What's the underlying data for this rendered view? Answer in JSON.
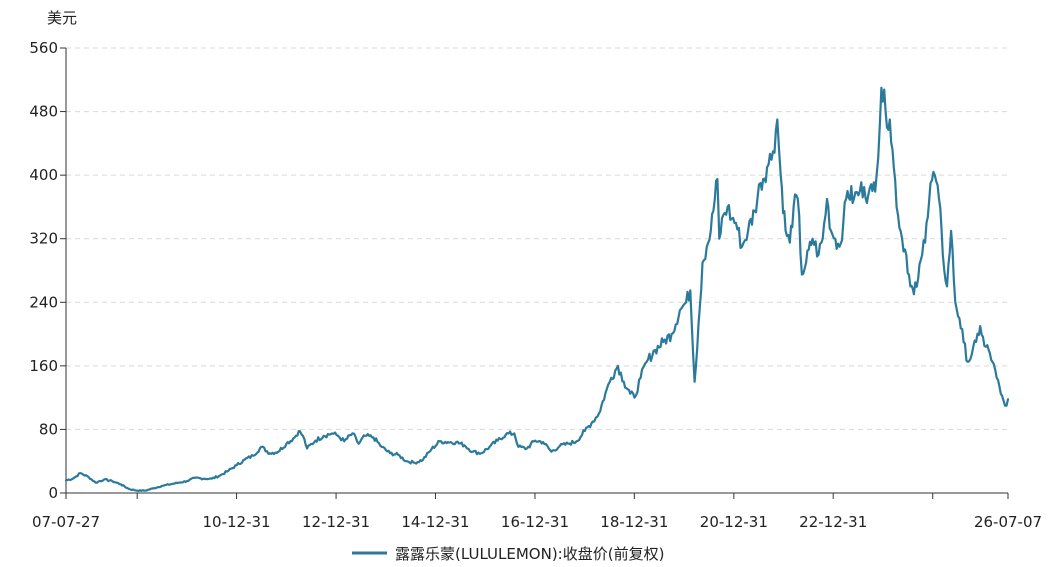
{
  "chart_data": {
    "type": "line",
    "title": "",
    "ylabel": "美元",
    "xlabel": "",
    "ylim": [
      0,
      560
    ],
    "yticks": [
      0,
      80,
      160,
      240,
      320,
      400,
      480,
      560
    ],
    "xlim": [
      "2007-07-27",
      "2026-07-07"
    ],
    "xticks": [
      {
        "date": "2007-07-27",
        "label": "07-07-27"
      },
      {
        "date": "2008-12-31",
        "label": ""
      },
      {
        "date": "2010-12-31",
        "label": "10-12-31"
      },
      {
        "date": "2012-12-31",
        "label": "12-12-31"
      },
      {
        "date": "2014-12-31",
        "label": "14-12-31"
      },
      {
        "date": "2016-12-31",
        "label": "16-12-31"
      },
      {
        "date": "2018-12-31",
        "label": "18-12-31"
      },
      {
        "date": "2020-12-31",
        "label": "20-12-31"
      },
      {
        "date": "2022-12-31",
        "label": "22-12-31"
      },
      {
        "date": "2024-12-31",
        "label": ""
      },
      {
        "date": "2026-07-07",
        "label": "26-07-07"
      }
    ],
    "grid": true,
    "legend_position": "bottom",
    "series": [
      {
        "name": "露露乐蒙(LULULEMON):收盘价(前复权)",
        "color": "#2c7a9b",
        "points": [
          [
            "2007-07-27",
            16
          ],
          [
            "2007-09-15",
            18
          ],
          [
            "2007-11-10",
            25
          ],
          [
            "2008-01-10",
            20
          ],
          [
            "2008-03-01",
            13
          ],
          [
            "2008-05-01",
            17
          ],
          [
            "2008-07-01",
            15
          ],
          [
            "2008-09-01",
            11
          ],
          [
            "2008-11-01",
            5
          ],
          [
            "2009-01-01",
            3
          ],
          [
            "2009-03-01",
            3
          ],
          [
            "2009-05-01",
            6
          ],
          [
            "2009-07-01",
            9
          ],
          [
            "2009-09-01",
            11
          ],
          [
            "2009-11-01",
            13
          ],
          [
            "2010-01-01",
            15
          ],
          [
            "2010-03-01",
            19
          ],
          [
            "2010-05-01",
            18
          ],
          [
            "2010-07-01",
            18
          ],
          [
            "2010-09-01",
            22
          ],
          [
            "2010-11-01",
            28
          ],
          [
            "2011-01-01",
            35
          ],
          [
            "2011-03-01",
            42
          ],
          [
            "2011-05-01",
            47
          ],
          [
            "2011-07-01",
            58
          ],
          [
            "2011-09-01",
            50
          ],
          [
            "2011-11-01",
            52
          ],
          [
            "2012-01-01",
            62
          ],
          [
            "2012-03-01",
            70
          ],
          [
            "2012-04-01",
            78
          ],
          [
            "2012-05-01",
            72
          ],
          [
            "2012-06-01",
            56
          ],
          [
            "2012-08-01",
            66
          ],
          [
            "2012-10-01",
            72
          ],
          [
            "2012-12-01",
            75
          ],
          [
            "2013-01-15",
            72
          ],
          [
            "2013-03-01",
            65
          ],
          [
            "2013-05-01",
            75
          ],
          [
            "2013-06-15",
            62
          ],
          [
            "2013-08-01",
            72
          ],
          [
            "2013-10-01",
            70
          ],
          [
            "2013-12-01",
            58
          ],
          [
            "2014-02-01",
            50
          ],
          [
            "2014-04-01",
            48
          ],
          [
            "2014-06-01",
            40
          ],
          [
            "2014-08-01",
            38
          ],
          [
            "2014-10-01",
            42
          ],
          [
            "2014-12-01",
            55
          ],
          [
            "2015-02-01",
            65
          ],
          [
            "2015-04-01",
            64
          ],
          [
            "2015-06-01",
            64
          ],
          [
            "2015-08-01",
            60
          ],
          [
            "2015-10-01",
            52
          ],
          [
            "2015-12-01",
            50
          ],
          [
            "2016-02-01",
            58
          ],
          [
            "2016-04-01",
            66
          ],
          [
            "2016-06-01",
            74
          ],
          [
            "2016-08-01",
            75
          ],
          [
            "2016-09-01",
            58
          ],
          [
            "2016-11-01",
            56
          ],
          [
            "2017-01-01",
            66
          ],
          [
            "2017-03-01",
            64
          ],
          [
            "2017-05-01",
            52
          ],
          [
            "2017-07-01",
            59
          ],
          [
            "2017-09-01",
            62
          ],
          [
            "2017-11-01",
            65
          ],
          [
            "2018-01-01",
            78
          ],
          [
            "2018-03-01",
            90
          ],
          [
            "2018-04-15",
            100
          ],
          [
            "2018-06-01",
            125
          ],
          [
            "2018-07-15",
            145
          ],
          [
            "2018-09-01",
            160
          ],
          [
            "2018-10-15",
            140
          ],
          [
            "2018-12-01",
            125
          ],
          [
            "2019-01-01",
            120
          ],
          [
            "2019-02-15",
            145
          ],
          [
            "2019-04-01",
            165
          ],
          [
            "2019-06-01",
            180
          ],
          [
            "2019-08-01",
            190
          ],
          [
            "2019-10-01",
            200
          ],
          [
            "2019-12-01",
            230
          ],
          [
            "2020-01-15",
            240
          ],
          [
            "2020-02-15",
            255
          ],
          [
            "2020-03-18",
            140
          ],
          [
            "2020-04-15",
            210
          ],
          [
            "2020-05-15",
            290
          ],
          [
            "2020-06-15",
            310
          ],
          [
            "2020-07-15",
            330
          ],
          [
            "2020-09-01",
            395
          ],
          [
            "2020-09-15",
            320
          ],
          [
            "2020-10-15",
            350
          ],
          [
            "2020-11-15",
            360
          ],
          [
            "2020-12-15",
            345
          ],
          [
            "2021-01-15",
            340
          ],
          [
            "2021-03-01",
            310
          ],
          [
            "2021-04-15",
            330
          ],
          [
            "2021-06-01",
            355
          ],
          [
            "2021-07-15",
            390
          ],
          [
            "2021-09-01",
            410
          ],
          [
            "2021-10-15",
            430
          ],
          [
            "2021-11-15",
            470
          ],
          [
            "2021-12-10",
            400
          ],
          [
            "2022-01-15",
            330
          ],
          [
            "2022-02-15",
            315
          ],
          [
            "2022-03-15",
            360
          ],
          [
            "2022-04-15",
            370
          ],
          [
            "2022-05-15",
            275
          ],
          [
            "2022-06-15",
            290
          ],
          [
            "2022-08-01",
            320
          ],
          [
            "2022-09-15",
            300
          ],
          [
            "2022-10-15",
            320
          ],
          [
            "2022-11-15",
            370
          ],
          [
            "2022-12-15",
            330
          ],
          [
            "2023-01-15",
            320
          ],
          [
            "2023-02-15",
            310
          ],
          [
            "2023-03-15",
            340
          ],
          [
            "2023-04-15",
            380
          ],
          [
            "2023-06-01",
            370
          ],
          [
            "2023-07-15",
            380
          ],
          [
            "2023-08-15",
            385
          ],
          [
            "2023-09-15",
            375
          ],
          [
            "2023-10-15",
            380
          ],
          [
            "2023-11-15",
            400
          ],
          [
            "2023-12-20",
            510
          ],
          [
            "2024-01-20",
            480
          ],
          [
            "2024-02-20",
            470
          ],
          [
            "2024-03-20",
            410
          ],
          [
            "2024-04-20",
            350
          ],
          [
            "2024-05-20",
            320
          ],
          [
            "2024-06-20",
            300
          ],
          [
            "2024-07-20",
            260
          ],
          [
            "2024-08-15",
            250
          ],
          [
            "2024-09-15",
            270
          ],
          [
            "2024-10-15",
            300
          ],
          [
            "2024-11-15",
            340
          ],
          [
            "2024-12-15",
            390
          ],
          [
            "2025-01-15",
            400
          ],
          [
            "2025-02-15",
            370
          ],
          [
            "2025-03-15",
            300
          ],
          [
            "2025-04-15",
            260
          ],
          [
            "2025-05-15",
            330
          ],
          [
            "2025-06-15",
            240
          ],
          [
            "2025-07-15",
            220
          ],
          [
            "2025-08-15",
            190
          ],
          [
            "2025-09-15",
            165
          ],
          [
            "2025-10-15",
            175
          ],
          [
            "2025-11-15",
            190
          ],
          [
            "2025-12-15",
            210
          ],
          [
            "2026-01-15",
            185
          ],
          [
            "2026-02-15",
            180
          ],
          [
            "2026-03-15",
            165
          ],
          [
            "2026-04-15",
            145
          ],
          [
            "2026-05-15",
            125
          ],
          [
            "2026-06-15",
            110
          ],
          [
            "2026-07-07",
            118
          ]
        ]
      }
    ]
  }
}
